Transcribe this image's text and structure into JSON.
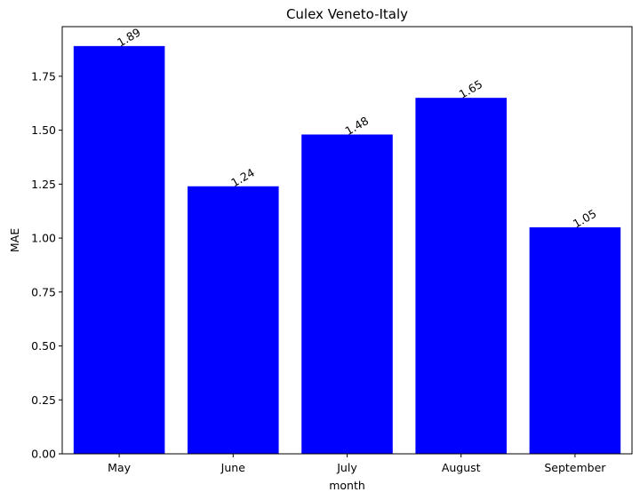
{
  "chart_data": {
    "type": "bar",
    "title": "Culex Veneto-Italy",
    "xlabel": "month",
    "ylabel": "MAE",
    "categories": [
      "May",
      "June",
      "July",
      "August",
      "September"
    ],
    "values": [
      1.89,
      1.24,
      1.48,
      1.65,
      1.05
    ],
    "data_labels": [
      "1.89",
      "1.24",
      "1.48",
      "1.65",
      "1.05"
    ],
    "ylim": [
      0,
      1.98
    ],
    "yticks": [
      "0.00",
      "0.25",
      "0.50",
      "0.75",
      "1.00",
      "1.25",
      "1.50",
      "1.75"
    ],
    "bar_color": "#0000ff",
    "grid": false,
    "legend": "none"
  }
}
